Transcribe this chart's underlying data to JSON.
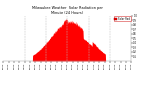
{
  "title": "Milwaukee Weather  Solar Radiation per\nMinute (24 Hours)",
  "bg_color": "#ffffff",
  "bar_color": "#ff0000",
  "grid_color": "#bbbbbb",
  "legend_label": "Solar Rad",
  "legend_color": "#ff0000",
  "ylim": [
    0,
    1.0
  ],
  "xlim": [
    0,
    1440
  ],
  "peak_minute": 750,
  "peak_value": 0.92,
  "sunrise": 330,
  "sunset": 1150,
  "dashed_lines_x": [
    240,
    480,
    720,
    960,
    1200
  ],
  "ytick_values": [
    0.1,
    0.2,
    0.3,
    0.4,
    0.5,
    0.6,
    0.7,
    0.8,
    0.9,
    1.0
  ],
  "xtick_step": 60
}
